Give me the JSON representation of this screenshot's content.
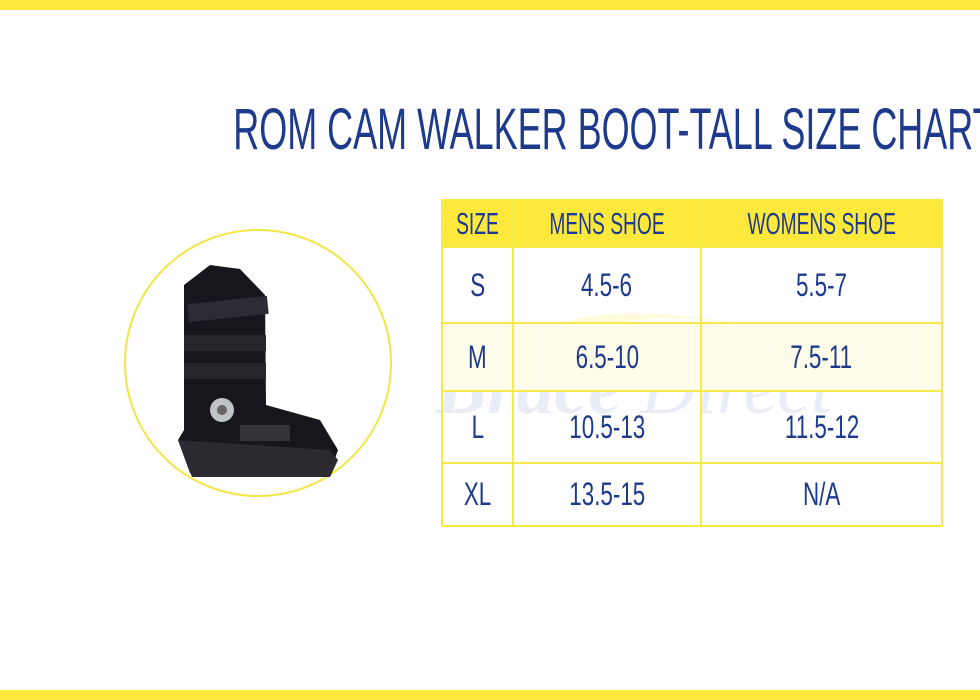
{
  "title": "ROM CAM WALKER BOOT-TALL SIZE CHART",
  "watermark": {
    "brand_bold": "Brace",
    "brand_light": "Direct"
  },
  "colors": {
    "accent_yellow": "#fde93b",
    "text_navy": "#1d3a8c"
  },
  "table": {
    "headers": [
      "SIZE",
      "MENS SHOE",
      "WOMENS SHOE"
    ],
    "rows": [
      [
        "S",
        "4.5-6",
        "5.5-7"
      ],
      [
        "M",
        "6.5-10",
        "7.5-11"
      ],
      [
        "L",
        "10.5-13",
        "11.5-12"
      ],
      [
        "XL",
        "13.5-15",
        "N/A"
      ]
    ]
  },
  "image": {
    "icon": "walker-boot-product-photo"
  }
}
